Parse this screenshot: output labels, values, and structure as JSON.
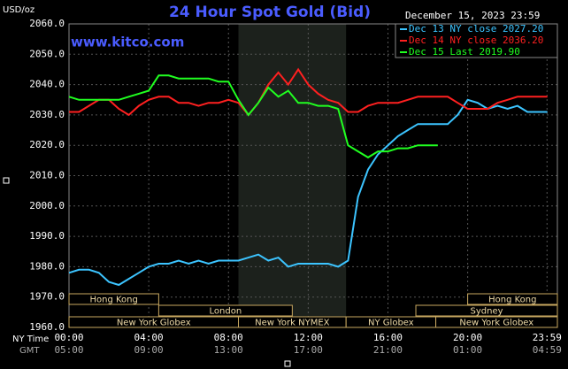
{
  "chart_data": {
    "type": "line",
    "title": "24 Hour Spot Gold (Bid)",
    "source": "www.kitco.com",
    "ylabel": "USD/oz",
    "date": "December 15, 2023 23:59",
    "x_row_labels": [
      "NY Time",
      "GMT"
    ],
    "x": [
      0,
      0.5,
      1,
      1.5,
      2,
      2.5,
      3,
      3.5,
      4,
      4.5,
      5,
      5.5,
      6,
      6.5,
      7,
      7.5,
      8,
      8.5,
      9,
      9.5,
      10,
      10.5,
      11,
      11.5,
      12,
      12.5,
      13,
      13.5,
      14,
      14.5,
      15,
      15.5,
      16,
      16.5,
      17,
      17.5,
      18,
      18.5,
      19,
      19.5,
      20,
      20.5,
      21,
      21.5,
      22,
      22.5,
      23,
      23.5,
      24
    ],
    "series": [
      {
        "name": "Dec 13 NY close 2027.20",
        "color": "#3cc4ff",
        "values": [
          1978,
          1979,
          1979,
          1978,
          1975,
          1974,
          1976,
          1978,
          1980,
          1981,
          1981,
          1982,
          1981,
          1982,
          1981,
          1982,
          1982,
          1982,
          1983,
          1984,
          1982,
          1983,
          1980,
          1981,
          1981,
          1981,
          1981,
          1980,
          1982,
          2003,
          2012,
          2017,
          2020,
          2023,
          2025,
          2027,
          2027,
          2027,
          2027,
          2030,
          2035,
          2034,
          2032,
          2033,
          2032,
          2033,
          2031,
          2031,
          2031
        ]
      },
      {
        "name": "Dec 14 NY close 2036.20",
        "color": "#ff2020",
        "values": [
          2031,
          2031,
          2033,
          2035,
          2035,
          2032,
          2030,
          2033,
          2035,
          2036,
          2036,
          2034,
          2034,
          2033,
          2034,
          2034,
          2035,
          2034,
          2030,
          2034,
          2040,
          2044,
          2040,
          2045,
          2040,
          2037,
          2035,
          2034,
          2031,
          2031,
          2033,
          2034,
          2034,
          2034,
          2035,
          2036,
          2036,
          2036,
          2036,
          2034,
          2032,
          2032,
          2032,
          2034,
          2035,
          2036,
          2036,
          2036,
          2036
        ]
      },
      {
        "name": "Dec 15 Last 2019.90",
        "color": "#20ff20",
        "values": [
          2036,
          2035,
          2035,
          2035,
          2035,
          2035,
          2036,
          2037,
          2038,
          2043,
          2043,
          2042,
          2042,
          2042,
          2042,
          2041,
          2041,
          2035,
          2030,
          2034,
          2039,
          2036,
          2038,
          2034,
          2034,
          2033,
          2033,
          2032,
          2020,
          2018,
          2016,
          2018,
          2018,
          2019,
          2019,
          2020,
          2020,
          2020,
          null,
          null,
          null,
          null,
          null,
          null,
          null,
          null,
          null,
          null,
          null
        ]
      }
    ],
    "xlim": [
      0,
      24.5
    ],
    "xticks": [
      {
        "value": 0,
        "label": "00:00"
      },
      {
        "value": 4,
        "label": "04:00"
      },
      {
        "value": 8,
        "label": "08:00"
      },
      {
        "value": 12,
        "label": "12:00"
      },
      {
        "value": 16,
        "label": "16:00"
      },
      {
        "value": 20,
        "label": "20:00"
      },
      {
        "value": 23.98,
        "label": "23:59"
      }
    ],
    "x2ticks": [
      {
        "value": 0,
        "label": "05:00"
      },
      {
        "value": 4,
        "label": "09:00"
      },
      {
        "value": 8,
        "label": "13:00"
      },
      {
        "value": 12,
        "label": "17:00"
      },
      {
        "value": 16,
        "label": "21:00"
      },
      {
        "value": 20,
        "label": "01:00"
      },
      {
        "value": 23.98,
        "label": "04:59"
      }
    ],
    "ylim": [
      1960,
      2060
    ],
    "yticks": [
      {
        "value": 1960,
        "label": "1960.0"
      },
      {
        "value": 1970,
        "label": "1970.0"
      },
      {
        "value": 1980,
        "label": "1980.0"
      },
      {
        "value": 1990,
        "label": "1990.0"
      },
      {
        "value": 2000,
        "label": "2000.0"
      },
      {
        "value": 2010,
        "label": "2010.0"
      },
      {
        "value": 2020,
        "label": "2020.0"
      },
      {
        "value": 2030,
        "label": "2030.0"
      },
      {
        "value": 2040,
        "label": "2040.0"
      },
      {
        "value": 2050,
        "label": "2050.0"
      },
      {
        "value": 2060,
        "label": "2060.0"
      }
    ],
    "grid": true,
    "shaded": [
      8.5,
      13.9
    ],
    "sessions": [
      {
        "label": "Hong Kong",
        "start": 0,
        "end": 4.5,
        "row": 0
      },
      {
        "label": "Hong Kong",
        "start": 20,
        "end": 24.5,
        "row": 0
      },
      {
        "label": "London",
        "start": 4.5,
        "end": 11.2,
        "row": 1
      },
      {
        "label": "Sydney",
        "start": 17.4,
        "end": 24.5,
        "row": 1
      },
      {
        "label": "New York Globex",
        "start": 0,
        "end": 8.5,
        "row": 2
      },
      {
        "label": "New York NYMEX",
        "start": 8.5,
        "end": 13.9,
        "row": 2
      },
      {
        "label": "NY Globex",
        "start": 13.9,
        "end": 18.4,
        "row": 2
      },
      {
        "label": "New York Globex",
        "start": 18.4,
        "end": 24.5,
        "row": 2
      }
    ]
  }
}
